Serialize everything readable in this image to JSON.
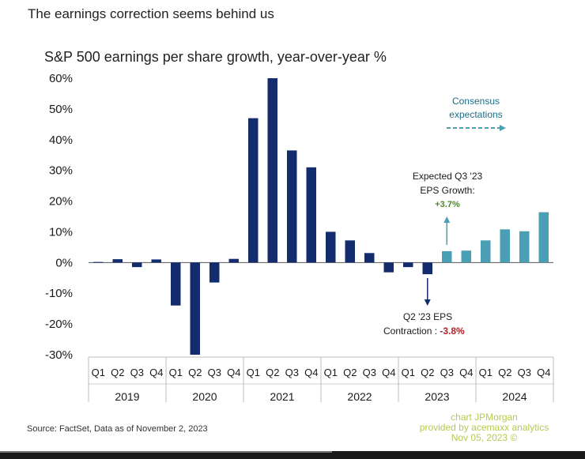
{
  "header": {
    "headline": "The earnings correction seems behind us"
  },
  "chart_data": {
    "type": "bar",
    "title": "S&P 500 earnings per share growth, year-over-year %",
    "xlabel": "",
    "ylabel": "",
    "ylim": [
      -30,
      60
    ],
    "yticks": [
      60,
      50,
      40,
      30,
      20,
      10,
      0,
      -10,
      -20,
      -30
    ],
    "ytick_labels": [
      "60%",
      "50%",
      "40%",
      "30%",
      "20%",
      "10%",
      "0%",
      "-10%",
      "-20%",
      "-30%"
    ],
    "quarters": [
      "Q1",
      "Q2",
      "Q3",
      "Q4",
      "Q1",
      "Q2",
      "Q3",
      "Q4",
      "Q1",
      "Q2",
      "Q3",
      "Q4",
      "Q1",
      "Q2",
      "Q3",
      "Q4",
      "Q1",
      "Q2",
      "Q3",
      "Q4",
      "Q1",
      "Q2",
      "Q3",
      "Q4"
    ],
    "years": [
      "2019",
      "2020",
      "2021",
      "2022",
      "2023",
      "2024"
    ],
    "values": [
      0.2,
      1.1,
      -1.5,
      1.0,
      -14.0,
      -30.0,
      -6.5,
      1.2,
      47.0,
      60.0,
      36.5,
      31.0,
      10.0,
      7.2,
      3.1,
      -3.2,
      -1.5,
      -3.8,
      3.7,
      3.9,
      7.2,
      10.8,
      10.2,
      16.4
    ],
    "series_colors": {
      "actual": "#132c6e",
      "consensus": "#4a9fb5"
    },
    "consensus_from_index": 18,
    "annotations": {
      "consensus": {
        "line1": "Consensus",
        "line2": "expectations"
      },
      "q3": {
        "line1": "Expected Q3 '23",
        "line2": "EPS Growth:",
        "value": "+3.7%",
        "value_color": "#4a8a2a"
      },
      "q2": {
        "line1": "Q2 '23 EPS",
        "line2": "Contraction : ",
        "value": "-3.8%",
        "value_color": "#b22222"
      }
    }
  },
  "footer": {
    "source": "Source: FactSet, Data as of November 2, 2023",
    "credit": [
      "chart JPMorgan",
      "provided by acemaxx analytics",
      "Nov 05, 2023 ©"
    ]
  }
}
